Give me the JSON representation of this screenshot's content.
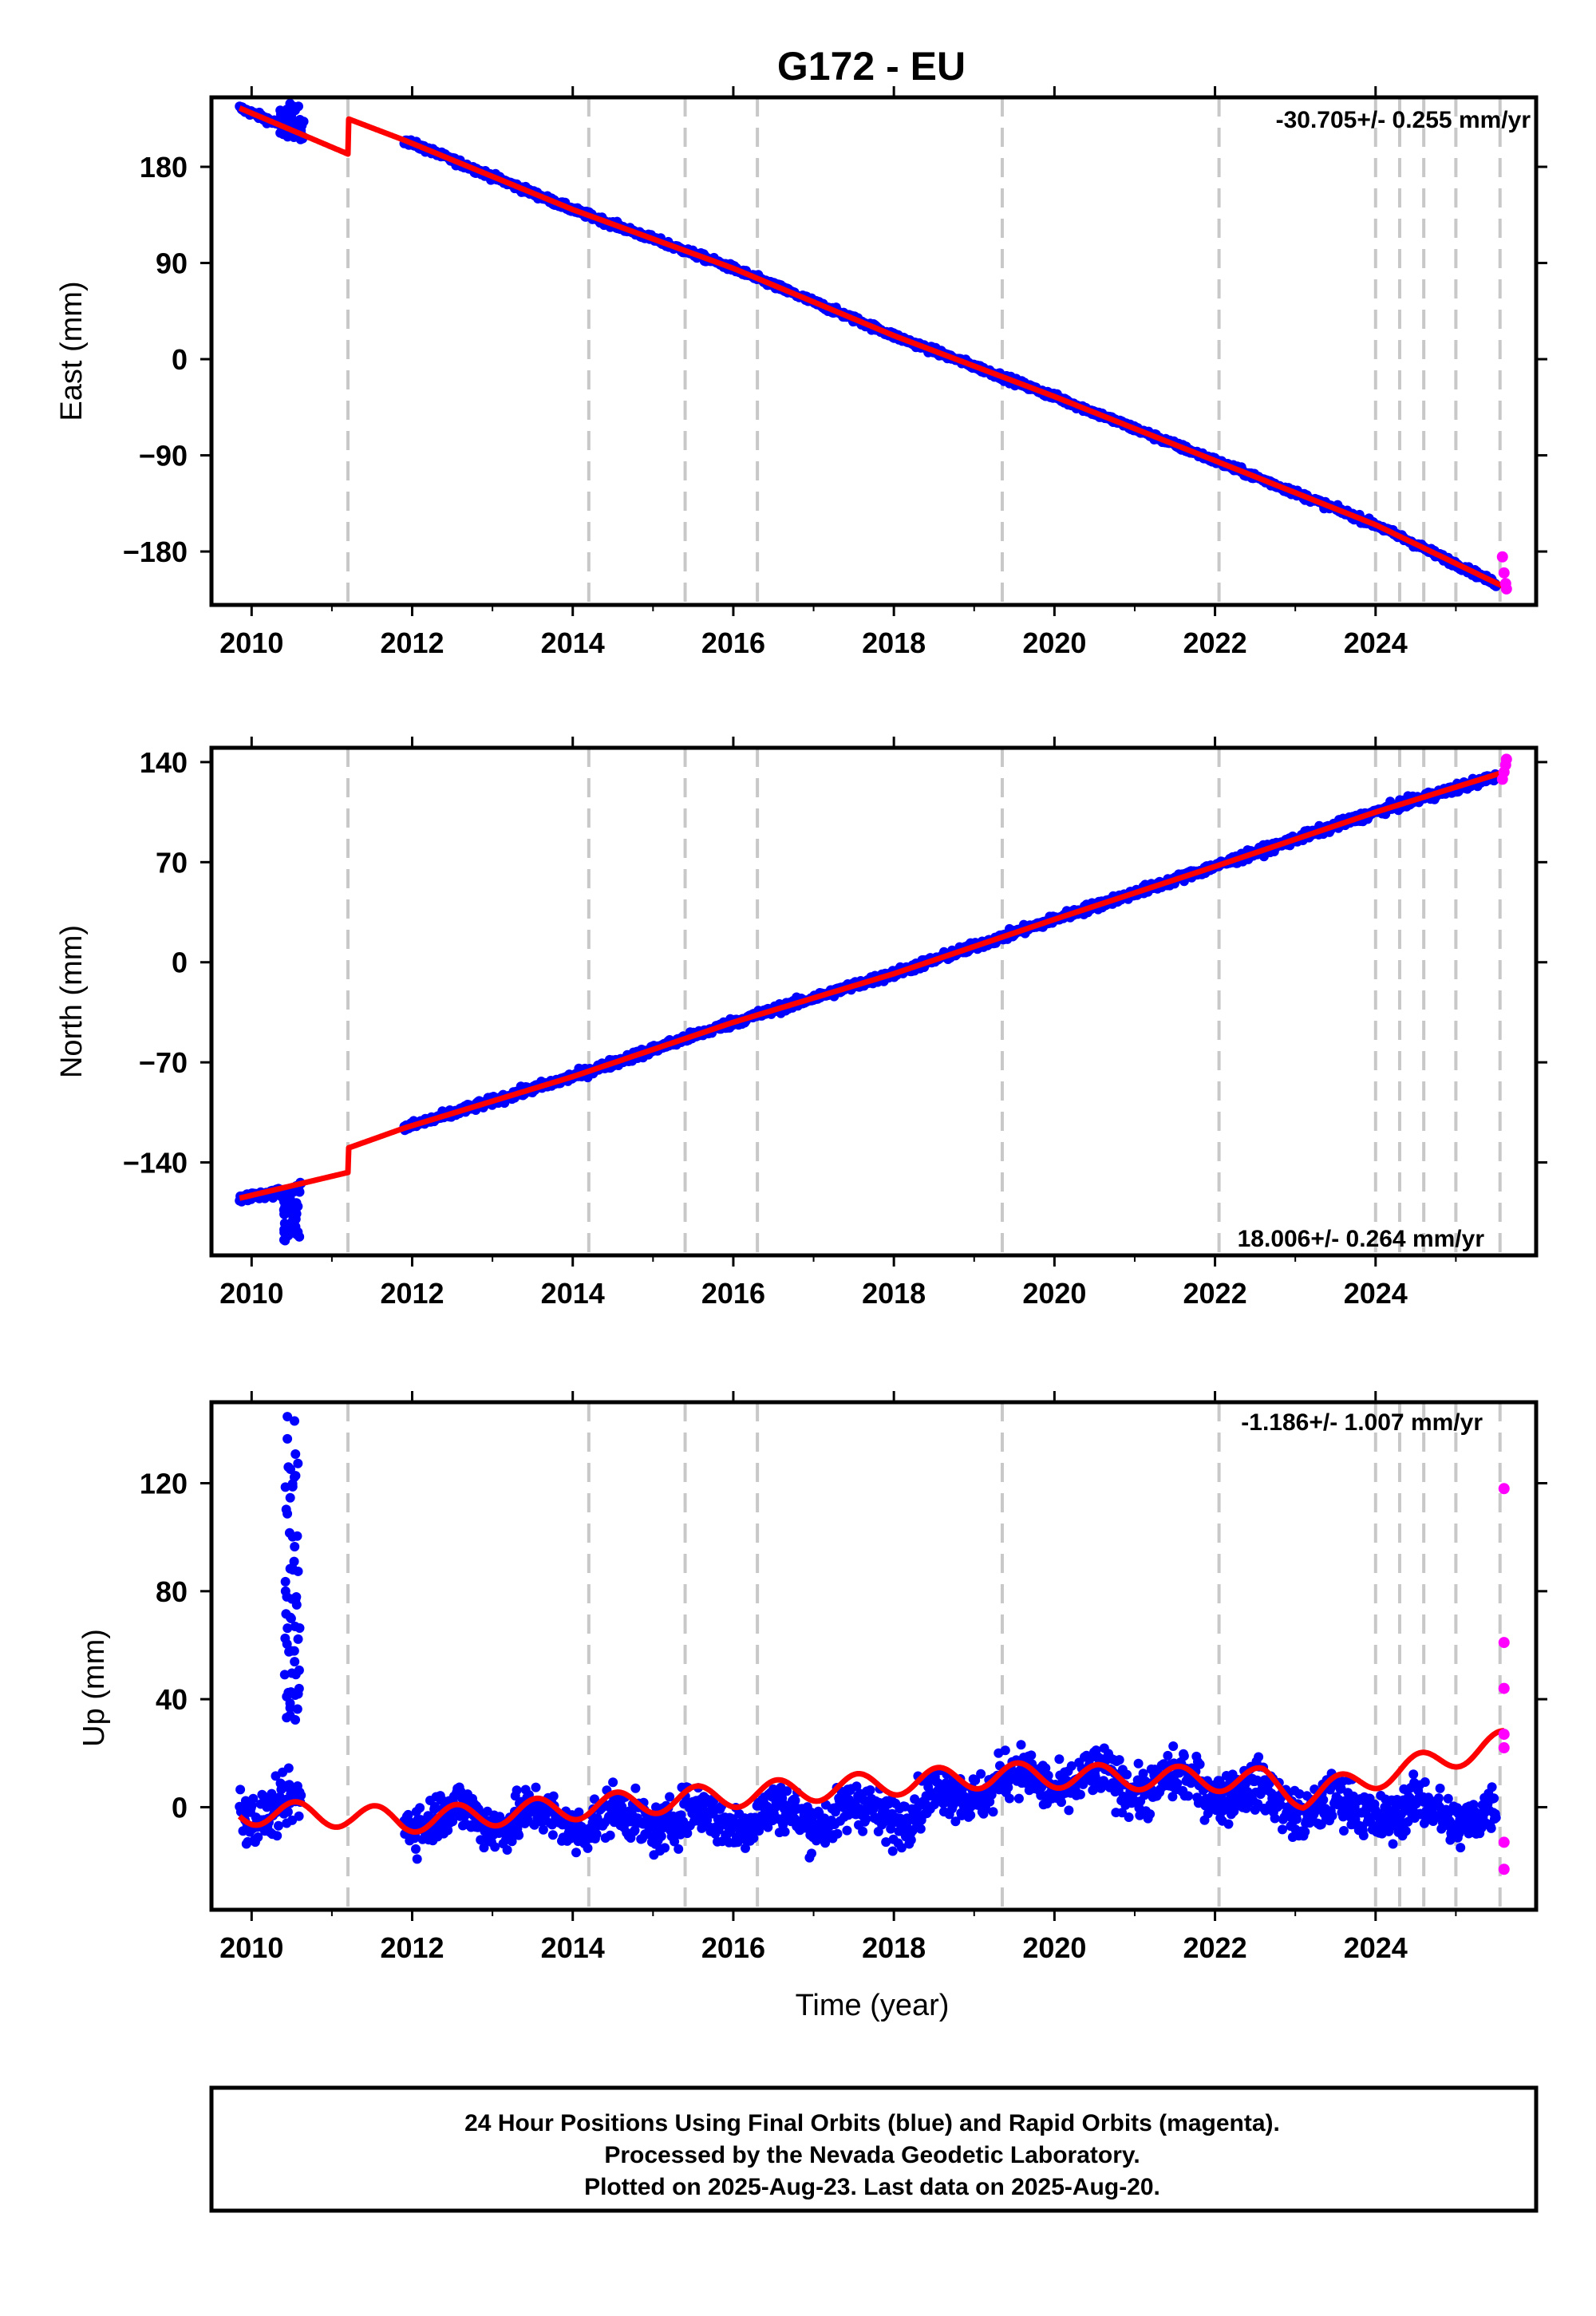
{
  "chart_data": [
    {
      "type": "scatter",
      "title": "G172 - EU",
      "ylabel": "East (mm)",
      "xlabel": "",
      "xlim": [
        2009.5,
        2026.0
      ],
      "ylim": [
        -230,
        245
      ],
      "xticks": [
        "2010",
        "2012",
        "2014",
        "2016",
        "2018",
        "2020",
        "2022",
        "2024"
      ],
      "yticks": [
        "180",
        "90",
        "0",
        "−90",
        "−180"
      ],
      "ytick_values": [
        180,
        90,
        0,
        -90,
        -180
      ],
      "rate": "-30.705+/- 0.255 mm/yr",
      "rate_position": "top-right",
      "data_span": {
        "final_start": 2009.85,
        "gap_start": 2010.6,
        "gap_end": 2011.9,
        "rapid_start": 2025.5,
        "end": 2025.63
      },
      "steps": [
        2011.2,
        2014.2,
        2015.4,
        2016.3,
        2019.35,
        2022.05,
        2024.0,
        2024.3,
        2024.6,
        2025.0,
        2025.55
      ],
      "series": [
        {
          "role": "final",
          "color": "#0000ff",
          "x": [
            2009.85,
            2010.5,
            2011.9,
            2014,
            2016,
            2018,
            2020,
            2022,
            2024,
            2025.5
          ],
          "y": [
            235,
            215,
            205,
            140,
            85,
            22,
            -35,
            -95,
            -155,
            -210
          ]
        },
        {
          "role": "model",
          "color": "#ff0000",
          "x": [
            2009.85,
            2011.2,
            2011.2,
            2011.9,
            2014,
            2016,
            2018,
            2020,
            2022,
            2024,
            2025.6
          ],
          "y": [
            235,
            192,
            225,
            205,
            140,
            85,
            22,
            -35,
            -95,
            -155,
            -213
          ]
        },
        {
          "role": "rapid",
          "color": "#ff00ff",
          "x": [
            2025.58,
            2025.6,
            2025.62,
            2025.63
          ],
          "y": [
            -185,
            -200,
            -210,
            -215
          ]
        }
      ]
    },
    {
      "type": "scatter",
      "title": "",
      "ylabel": "North (mm)",
      "xlabel": "",
      "xlim": [
        2009.5,
        2026.0
      ],
      "ylim": [
        -205,
        150
      ],
      "xticks": [
        "2010",
        "2012",
        "2014",
        "2016",
        "2018",
        "2020",
        "2022",
        "2024"
      ],
      "yticks": [
        "140",
        "70",
        "0",
        "−70",
        "−140"
      ],
      "ytick_values": [
        140,
        70,
        0,
        -70,
        -140
      ],
      "rate": "18.006+/- 0.264 mm/yr",
      "rate_position": "bottom-right",
      "steps": [
        2011.2,
        2014.2,
        2015.4,
        2016.3,
        2019.35,
        2022.05,
        2024.0,
        2024.3,
        2024.6,
        2025.0,
        2025.55
      ],
      "series": [
        {
          "role": "final",
          "color": "#0000ff",
          "x": [
            2009.85,
            2010.5,
            2011.9,
            2014,
            2016,
            2018,
            2020,
            2022,
            2024,
            2025.5
          ],
          "y": [
            -165,
            -160,
            -116,
            -80,
            -42,
            -8,
            30,
            67,
            105,
            130
          ]
        },
        {
          "role": "model",
          "color": "#ff0000",
          "x": [
            2009.85,
            2011.2,
            2011.2,
            2011.9,
            2014,
            2016,
            2018,
            2020,
            2022,
            2024,
            2025.6
          ],
          "y": [
            -165,
            -147,
            -130,
            -116,
            -80,
            -42,
            -8,
            30,
            67,
            105,
            133
          ]
        },
        {
          "role": "rapid",
          "color": "#ff00ff",
          "x": [
            2025.58,
            2025.6,
            2025.62,
            2025.63
          ],
          "y": [
            128,
            133,
            138,
            142
          ]
        }
      ]
    },
    {
      "type": "scatter",
      "title": "",
      "ylabel": "Up (mm)",
      "xlabel": "Time (year)",
      "xlim": [
        2009.5,
        2026.0
      ],
      "ylim": [
        -38,
        150
      ],
      "xticks": [
        "2010",
        "2012",
        "2014",
        "2016",
        "2018",
        "2020",
        "2022",
        "2024"
      ],
      "yticks": [
        "120",
        "80",
        "40",
        "0"
      ],
      "ytick_values": [
        120,
        80,
        40,
        0
      ],
      "rate": "-1.186+/- 1.007 mm/yr",
      "rate_position": "top-right",
      "steps": [
        2011.2,
        2014.2,
        2015.4,
        2016.3,
        2019.35,
        2022.05,
        2024.0,
        2024.3,
        2024.6,
        2025.0,
        2025.55
      ],
      "outliers": {
        "x_range": [
          2010.4,
          2010.6
        ],
        "y_range": [
          32,
          148
        ]
      },
      "series": [
        {
          "role": "final",
          "color": "#0000ff",
          "x": [
            2009.85,
            2011.9,
            2014,
            2016,
            2018,
            2019.4,
            2022,
            2023.1,
            2025.5
          ],
          "y": [
            0,
            -3,
            -5,
            -4,
            -2,
            10,
            8,
            0,
            -3
          ]
        },
        {
          "role": "model",
          "color": "#ff0000",
          "x": [
            2009.85,
            2011.2,
            2011.9,
            2019.35,
            2022.6,
            2023.1,
            2025.6
          ],
          "y": [
            -2,
            -3,
            -5,
            12,
            10,
            4,
            24
          ]
        },
        {
          "role": "rapid",
          "color": "#ff00ff",
          "x": [
            2025.6,
            2025.6,
            2025.6,
            2025.6,
            2025.6,
            2025.6,
            2025.6
          ],
          "y": [
            118,
            61,
            44,
            27,
            22,
            -13,
            -23
          ]
        }
      ]
    }
  ],
  "footer": {
    "line1": "24 Hour Positions Using Final Orbits (blue) and Rapid Orbits (magenta).",
    "line2": "Processed by the Nevada Geodetic Laboratory.",
    "line3": "Plotted on 2025-Aug-23. Last data on 2025-Aug-20."
  },
  "colors": {
    "final": "#0000ff",
    "rapid": "#ff00ff",
    "model": "#ff0000",
    "steps": "#c8c8c8",
    "frame": "#000000"
  }
}
